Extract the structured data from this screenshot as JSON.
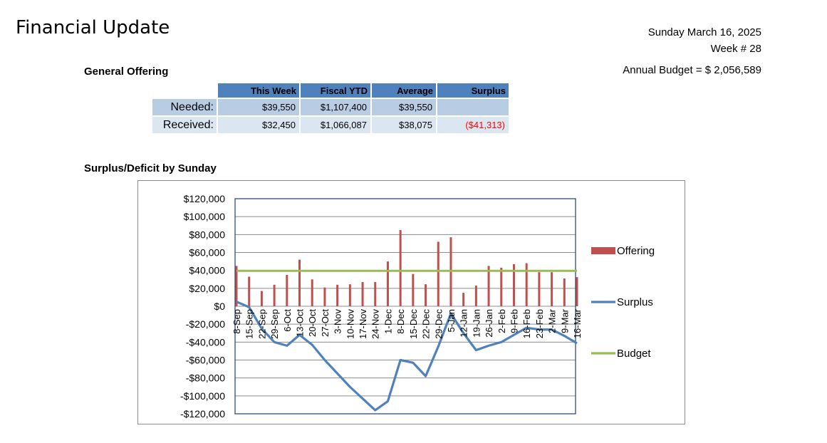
{
  "header": {
    "title": "Financial Update",
    "date": "Sunday March 16, 2025",
    "week": "Week # 28",
    "annual_budget": "Annual Budget = $ 2,056,589"
  },
  "offering_table": {
    "section_title": "General Offering",
    "columns": [
      "This Week",
      "Fiscal YTD",
      "Average",
      "Surplus"
    ],
    "rows": [
      {
        "label": "Needed:",
        "values": [
          "$39,550",
          "$1,107,400",
          "$39,550",
          ""
        ]
      },
      {
        "label": "Received:",
        "values": [
          "$32,450",
          "$1,066,087",
          "$38,075",
          "($41,313)"
        ]
      }
    ]
  },
  "chart_section_title": "Surplus/Deficit by Sunday",
  "colors": {
    "offering": "#c0504d",
    "surplus": "#4f81bd",
    "budget": "#9bbb59",
    "frame": "#1f3b73"
  },
  "chart_data": {
    "type": "bar",
    "categories": [
      "8-Sep",
      "15-Sep",
      "22-Sep",
      "29-Sep",
      "6-Oct",
      "13-Oct",
      "20-Oct",
      "27-Oct",
      "3-Nov",
      "10-Nov",
      "17-Nov",
      "24-Nov",
      "1-Dec",
      "8-Dec",
      "15-Dec",
      "22-Dec",
      "29-Dec",
      "5-Jan",
      "12-Jan",
      "19-Jan",
      "26-Jan",
      "2-Feb",
      "9-Feb",
      "16-Feb",
      "23-Feb",
      "2-Mar",
      "9-Mar",
      "16-Mar"
    ],
    "series": [
      {
        "name": "Offering",
        "type": "bar",
        "values": [
          45000,
          33000,
          17000,
          24000,
          35000,
          52000,
          30000,
          21000,
          24000,
          24500,
          27000,
          27000,
          50000,
          85000,
          36000,
          24500,
          72000,
          77000,
          15000,
          23000,
          45000,
          43000,
          47000,
          48000,
          38000,
          38000,
          31000,
          32450
        ]
      },
      {
        "name": "Surplus",
        "type": "line",
        "values": [
          5000,
          -1000,
          -25000,
          -40000,
          -44000,
          -32000,
          -43000,
          -60000,
          -75000,
          -90000,
          -103000,
          -116000,
          -106000,
          -60000,
          -63000,
          -78000,
          -45000,
          -8000,
          -30000,
          -49000,
          -44000,
          -40000,
          -32000,
          -24000,
          -26000,
          -26000,
          -33000,
          -41313
        ]
      },
      {
        "name": "Budget",
        "type": "line",
        "values": [
          39550,
          39550,
          39550,
          39550,
          39550,
          39550,
          39550,
          39550,
          39550,
          39550,
          39550,
          39550,
          39550,
          39550,
          39550,
          39550,
          39550,
          39550,
          39550,
          39550,
          39550,
          39550,
          39550,
          39550,
          39550,
          39550,
          39550,
          39550
        ]
      }
    ],
    "y_ticks": [
      "$120,000",
      "$100,000",
      "$80,000",
      "$60,000",
      "$40,000",
      "$20,000",
      "$0",
      "-$20,000",
      "-$40,000",
      "-$60,000",
      "-$80,000",
      "-$100,000",
      "-$120,000"
    ],
    "ylim": [
      -120000,
      120000
    ],
    "grid": true,
    "legend": "right"
  }
}
